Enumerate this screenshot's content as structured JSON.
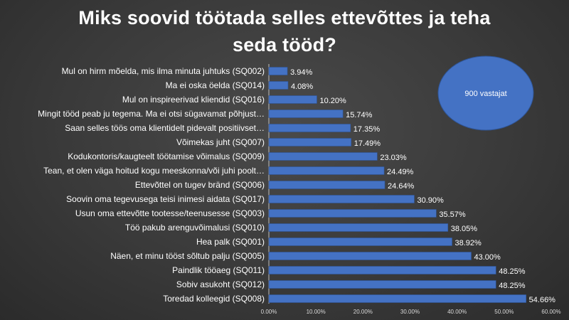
{
  "chart_data": {
    "type": "bar",
    "orientation": "horizontal",
    "title_lines": [
      "Miks soovid töötada selles ettevõttes ja teha",
      "seda tööd?"
    ],
    "categories": [
      "Mul on hirm mõelda, mis ilma minuta juhtuks (SQ002)",
      "Ma ei oska öelda (SQ014)",
      "Mul on inspireerivad kliendid (SQ016)",
      "Mingit tööd peab ju tegema. Ma ei otsi sügavamat põhjust…",
      "Saan selles töös oma klientidelt pidevalt positiivset…",
      "Võimekas juht (SQ007)",
      "Kodukontoris/kaugteelt töötamise võimalus (SQ009)",
      "Tean, et olen väga hoitud kogu meeskonna/või juhi poolt…",
      "Ettevõttel on tugev bränd (SQ006)",
      "Soovin oma tegevusega teisi inimesi aidata (SQ017)",
      "Usun oma ettevõtte tootesse/teenusesse (SQ003)",
      "Töö pakub arenguvõimalusi (SQ010)",
      "Hea palk (SQ001)",
      "Näen, et minu tööst sõltub palju (SQ005)",
      "Paindlik tööaeg (SQ011)",
      "Sobiv asukoht (SQ012)",
      "Toredad kolleegid (SQ008)"
    ],
    "values": [
      3.94,
      4.08,
      10.2,
      15.74,
      17.35,
      17.49,
      23.03,
      24.49,
      24.64,
      30.9,
      35.57,
      38.05,
      38.92,
      43.0,
      48.25,
      48.25,
      54.66
    ],
    "value_labels": [
      "3.94%",
      "4.08%",
      "10.20%",
      "15.74%",
      "17.35%",
      "17.49%",
      "23.03%",
      "24.49%",
      "24.64%",
      "30.90%",
      "35.57%",
      "38.05%",
      "38.92%",
      "43.00%",
      "48.25%",
      "48.25%",
      "54.66%"
    ],
    "xlim": [
      0,
      60
    ],
    "xticks": [
      "0.00%",
      "10.00%",
      "20.00%",
      "30.00%",
      "40.00%",
      "50.00%",
      "60.00%"
    ],
    "grid": false,
    "annotation": "900 vastajat",
    "colors": {
      "bar_fill": "#4472c4",
      "bar_stroke": "#2f5597",
      "annotation_fill": "#4472c4",
      "annotation_stroke": "#2f5597",
      "text": "#ffffff"
    }
  }
}
